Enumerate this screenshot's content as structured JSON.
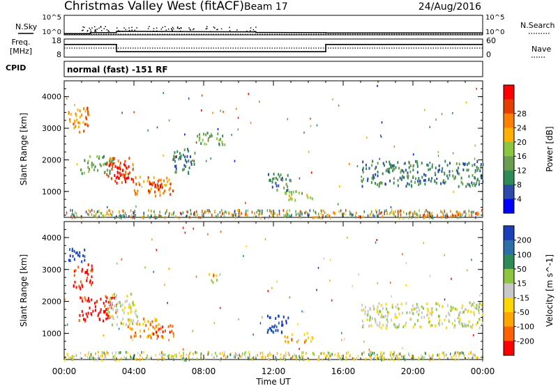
{
  "header": {
    "title": "Christmas Valley West (fitACF)",
    "beam": "Beam 17",
    "date": "24/Aug/2016"
  },
  "nsky_panel": {
    "label": "N.Sky",
    "left_ticks": [
      "10^5",
      "10^0"
    ],
    "right_label": "N.Search",
    "right_ticks": [
      "10^5",
      "10^0"
    ]
  },
  "freq_panel": {
    "label_line1": "Freq.",
    "label_line2": "[MHz]",
    "left_ticks": [
      "18",
      "8"
    ],
    "right_label": "Nave",
    "right_ticks": [
      "60",
      "0"
    ]
  },
  "cpid_panel": {
    "label": "CPID",
    "mode_text": "normal (fast) -151 RF"
  },
  "time_axis": {
    "ticks": [
      "00:00",
      "04:00",
      "08:00",
      "12:00",
      "16:00",
      "20:00",
      "00:00"
    ],
    "label": "Time UT"
  },
  "chart_data": [
    {
      "type": "line",
      "name": "N.Sky / N.Search",
      "x_hours": [
        0,
        1.5,
        1.5,
        3,
        3,
        11,
        11,
        15,
        15,
        24
      ],
      "y_log": [
        0.3,
        0.3,
        0.55,
        0.55,
        0.9,
        0.75,
        0.6,
        0.55,
        0.5,
        0.5
      ],
      "ylim": [
        0,
        5
      ]
    },
    {
      "type": "line",
      "name": "Freq. / Nave",
      "x_hours": [
        0,
        3,
        3,
        15,
        15,
        24
      ],
      "freq_mhz": [
        15,
        15,
        11,
        11,
        15,
        15
      ],
      "nave": [
        30,
        30,
        30,
        30,
        30,
        30
      ],
      "ylim_freq": [
        8,
        18
      ],
      "ylim_nave": [
        0,
        60
      ]
    },
    {
      "type": "heatmap",
      "ylabel": "Slant Range [km]",
      "xlabel": "Time UT",
      "ylim": [
        180,
        4500
      ],
      "yticks": [
        "1000",
        "2000",
        "3000",
        "4000"
      ],
      "colorbar": {
        "label": "Power [dB]",
        "ticks": [
          "4",
          "8",
          "12",
          "16",
          "20",
          "24",
          "28"
        ],
        "colors": [
          "#0000ff",
          "#2c4aa8",
          "#2e8b57",
          "#6a9d50",
          "#8cc63f",
          "#ffb000",
          "#ff8000",
          "#e63e00",
          "#ff0000"
        ]
      },
      "blobs": [
        {
          "t0": 0.2,
          "t1": 1.4,
          "r0": 2900,
          "r1": 3700,
          "c": 6
        },
        {
          "t0": 0.9,
          "t1": 2.8,
          "r0": 1600,
          "r1": 2200,
          "c": 3
        },
        {
          "t0": 2.4,
          "t1": 4.0,
          "r0": 1300,
          "r1": 2100,
          "c": 7
        },
        {
          "t0": 3.0,
          "t1": 3.6,
          "r0": 1400,
          "r1": 2050,
          "c": 8
        },
        {
          "t0": 4.0,
          "t1": 6.3,
          "r0": 900,
          "r1": 1500,
          "c": 6
        },
        {
          "t0": 4.6,
          "t1": 5.6,
          "r0": 1000,
          "r1": 1300,
          "c": 7
        },
        {
          "t0": 6.2,
          "t1": 7.5,
          "r0": 1600,
          "r1": 2400,
          "c": 2
        },
        {
          "t0": 7.6,
          "t1": 9.2,
          "r0": 2500,
          "r1": 2900,
          "c": 3
        },
        {
          "t0": 11.6,
          "t1": 13.0,
          "r0": 1000,
          "r1": 1600,
          "c": 2
        },
        {
          "t0": 12.6,
          "t1": 14.2,
          "r0": 750,
          "r1": 1050,
          "c": 4
        },
        {
          "t0": 17.0,
          "t1": 24.0,
          "r0": 1200,
          "r1": 2000,
          "c": 2
        }
      ]
    },
    {
      "type": "heatmap",
      "ylabel": "Slant Range [km]",
      "xlabel": "Time UT",
      "ylim": [
        180,
        4500
      ],
      "yticks": [
        "1000",
        "2000",
        "3000",
        "4000"
      ],
      "colorbar": {
        "label": "Velocity [m s^-1]",
        "ticks": [
          "200",
          "100",
          "50",
          "15",
          "-15",
          "-50",
          "-100",
          "-200"
        ],
        "colors": [
          "#1b3fb8",
          "#2c6fa8",
          "#2e8b57",
          "#8cc63f",
          "#c8c8c8",
          "#ffd700",
          "#ffa500",
          "#ff6000",
          "#ff0000"
        ]
      },
      "blobs": [
        {
          "t0": 0.2,
          "t1": 1.2,
          "r0": 3200,
          "r1": 3700,
          "c": 0
        },
        {
          "t0": 0.5,
          "t1": 1.6,
          "r0": 2400,
          "r1": 3200,
          "c": 8
        },
        {
          "t0": 0.8,
          "t1": 3.0,
          "r0": 1400,
          "r1": 2200,
          "c": 8
        },
        {
          "t0": 2.4,
          "t1": 4.2,
          "r0": 1300,
          "r1": 2300,
          "c": 4
        },
        {
          "t0": 3.6,
          "t1": 5.4,
          "r0": 900,
          "r1": 1500,
          "c": 6
        },
        {
          "t0": 5.0,
          "t1": 6.4,
          "r0": 900,
          "r1": 1300,
          "c": 7
        },
        {
          "t0": 8.2,
          "t1": 8.9,
          "r0": 2600,
          "r1": 2900,
          "c": 4
        },
        {
          "t0": 11.6,
          "t1": 12.9,
          "r0": 1000,
          "r1": 1600,
          "c": 0
        },
        {
          "t0": 12.6,
          "t1": 14.2,
          "r0": 750,
          "r1": 1050,
          "c": 6
        },
        {
          "t0": 17.0,
          "t1": 24.0,
          "r0": 1200,
          "r1": 2000,
          "c": 4
        }
      ]
    }
  ]
}
